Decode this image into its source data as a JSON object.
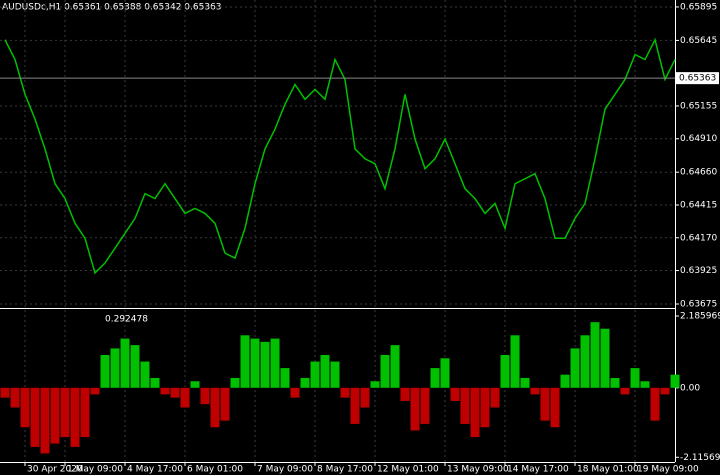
{
  "chart_data": [
    {
      "type": "line",
      "title": "AUDUSDc,H1  0.65361 0.65388 0.65342 0.65363",
      "color": "#00c000",
      "grid": true,
      "categories": [
        null,
        null,
        "30 Apr 2020",
        null,
        null,
        null,
        "1 May 09:00",
        null,
        null,
        null,
        null,
        null,
        "4 May 17:00",
        null,
        null,
        null,
        null,
        null,
        "6 May 01:00",
        null,
        null,
        null,
        null,
        null,
        null,
        "7 May 09:00",
        null,
        null,
        null,
        null,
        null,
        "8 May 17:00",
        null,
        null,
        null,
        null,
        null,
        "12 May 01:00",
        null,
        null,
        null,
        null,
        null,
        null,
        "13 May 09:00",
        null,
        null,
        null,
        null,
        null,
        "14 May 17:00",
        null,
        null,
        null,
        null,
        null,
        null,
        "18 May 01:00",
        null,
        null,
        null,
        null,
        null,
        "19 May 09:00",
        null,
        null,
        null,
        null
      ],
      "values": [
        0.6565,
        0.65502,
        0.65242,
        0.65057,
        0.64834,
        0.64574,
        0.64463,
        0.64278,
        0.64166,
        0.63907,
        0.63981,
        0.64092,
        0.64203,
        0.64315,
        0.645,
        0.64463,
        0.64574,
        0.64463,
        0.64352,
        0.64389,
        0.64352,
        0.64278,
        0.64055,
        0.64018,
        0.6424,
        0.64574,
        0.64834,
        0.64982,
        0.65168,
        0.65316,
        0.65205,
        0.65279,
        0.65205,
        0.65502,
        0.65353,
        0.64834,
        0.6476,
        0.64723,
        0.64537,
        0.64834,
        0.65242,
        0.64908,
        0.64686,
        0.6476,
        0.64908,
        0.64723,
        0.64537,
        0.64463,
        0.64352,
        0.64426,
        0.6424,
        0.64574,
        0.64611,
        0.64649,
        0.64463,
        0.64166,
        0.64166,
        0.64315,
        0.64426,
        0.6476,
        0.65131,
        0.65242,
        0.65353,
        0.65539,
        0.65502,
        0.6565,
        0.65353,
        0.65502
      ],
      "ylim": [
        0.63645,
        0.65947
      ],
      "yticks": [
        {
          "value": 0.65895,
          "label": "0.65895"
        },
        {
          "value": 0.65645,
          "label": "0.65645"
        },
        {
          "value": 0.65155,
          "label": "0.65155"
        },
        {
          "value": 0.6491,
          "label": "0.64910"
        },
        {
          "value": 0.6466,
          "label": "0.64660"
        },
        {
          "value": 0.64415,
          "label": "0.64415"
        },
        {
          "value": 0.6417,
          "label": "0.64170"
        },
        {
          "value": 0.63925,
          "label": "0.63925"
        },
        {
          "value": 0.63675,
          "label": "0.63675"
        }
      ],
      "last_price": 0.65363
    },
    {
      "type": "bar",
      "color": "#00c000",
      "negative_color": "#c00000",
      "indicator_value": 0.292478,
      "values": [
        -0.3,
        -0.6,
        -1.2,
        -1.8,
        -2.0,
        -1.7,
        -1.5,
        -1.8,
        -1.5,
        -0.2,
        1.0,
        1.2,
        1.5,
        1.3,
        0.8,
        0.3,
        -0.2,
        -0.3,
        -0.6,
        0.2,
        -0.5,
        -1.2,
        -1.0,
        0.3,
        1.6,
        1.5,
        1.4,
        1.5,
        0.6,
        -0.3,
        0.3,
        0.8,
        1.0,
        0.8,
        -0.3,
        -1.1,
        -0.6,
        0.2,
        1.0,
        1.3,
        -0.4,
        -1.3,
        -1.1,
        0.6,
        0.9,
        -0.4,
        -1.1,
        -1.5,
        -1.2,
        -0.6,
        1.0,
        1.6,
        0.3,
        -0.2,
        -1.0,
        -1.2,
        0.4,
        1.2,
        1.6,
        2.0,
        1.8,
        0.3,
        -0.2,
        0.6,
        0.2,
        -1.0,
        -0.2,
        0.4
      ],
      "ylim": [
        -2.26,
        2.37
      ],
      "yticks": [
        2.185969,
        {
          "value": 0,
          "label": "0.00"
        },
        -2.115691
      ]
    }
  ]
}
